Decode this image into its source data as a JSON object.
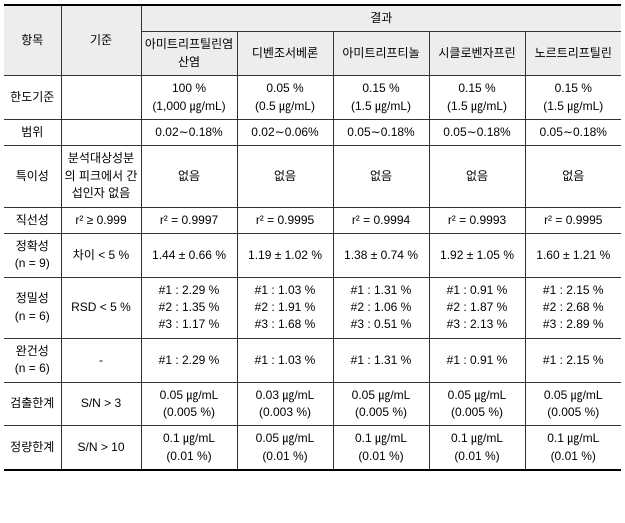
{
  "header": {
    "item": "항목",
    "criterion": "기준",
    "results": "결과",
    "cols": [
      "아미트리프틸린염산염",
      "디벤조서베론",
      "아미트리프티놀",
      "시클로벤자프린",
      "노르트리프틸린"
    ]
  },
  "rows": {
    "limit": {
      "label": "한도기준",
      "criterion": "",
      "vals": [
        "100 %\n(1,000 ㎍/mL)",
        "0.05 %\n(0.5 ㎍/mL)",
        "0.15 %\n(1.5 ㎍/mL)",
        "0.15 %\n(1.5 ㎍/mL)",
        "0.15 %\n(1.5 ㎍/mL)"
      ]
    },
    "range": {
      "label": "범위",
      "criterion": "",
      "vals": [
        "0.02∼0.18%",
        "0.02∼0.06%",
        "0.05∼0.18%",
        "0.05∼0.18%",
        "0.05∼0.18%"
      ]
    },
    "specificity": {
      "label": "특이성",
      "criterion": "분석대상성분의 피크에서 간섭인자 없음",
      "vals": [
        "없음",
        "없음",
        "없음",
        "없음",
        "없음"
      ]
    },
    "linearity": {
      "label": "직선성",
      "criterion": "r² ≥ 0.999",
      "vals": [
        "r² = 0.9997",
        "r² = 0.9995",
        "r² = 0.9994",
        "r² = 0.9993",
        "r² = 0.9995"
      ]
    },
    "accuracy": {
      "label": "정확성\n(n = 9)",
      "criterion": "차이 < 5 %",
      "vals": [
        "1.44 ± 0.66 %",
        "1.19 ± 1.02 %",
        "1.38 ± 0.74 %",
        "1.92 ± 1.05 %",
        "1.60 ± 1.21 %"
      ]
    },
    "precision": {
      "label": "정밀성\n(n = 6)",
      "criterion": "RSD < 5 %",
      "vals": [
        "#1 : 2.29 %\n#2 : 1.35 %\n#3 : 1.17 %",
        "#1 : 1.03 %\n#2 : 1.91 %\n#3 : 1.68 %",
        "#1 : 1.31 %\n#2 : 1.06 %\n#3 : 0.51 %",
        "#1 : 0.91 %\n#2 : 1.87 %\n#3 : 2.13 %",
        "#1 : 2.15 %\n#2 : 2.68 %\n#3 : 2.89 %"
      ]
    },
    "robustness": {
      "label": "완건성\n(n = 6)",
      "criterion": "-",
      "vals": [
        "#1 : 2.29 %",
        "#1 : 1.03 %",
        "#1 : 1.31 %",
        "#1 : 0.91 %",
        "#1 : 2.15 %"
      ]
    },
    "lod": {
      "label": "검출한계",
      "criterion": "S/N > 3",
      "vals": [
        "0.05 ㎍/mL\n(0.005 %)",
        "0.03 ㎍/mL\n(0.003 %)",
        "0.05 ㎍/mL\n(0.005 %)",
        "0.05 ㎍/mL\n(0.005 %)",
        "0.05 ㎍/mL\n(0.005 %)"
      ]
    },
    "loq": {
      "label": "정량한계",
      "criterion": "S/N > 10",
      "vals": [
        "0.1 ㎍/mL\n(0.01 %)",
        "0.05 ㎍/mL\n(0.01 %)",
        "0.1 ㎍/mL\n(0.01 %)",
        "0.1 ㎍/mL\n(0.01 %)",
        "0.1 ㎍/mL\n(0.01 %)"
      ]
    }
  }
}
